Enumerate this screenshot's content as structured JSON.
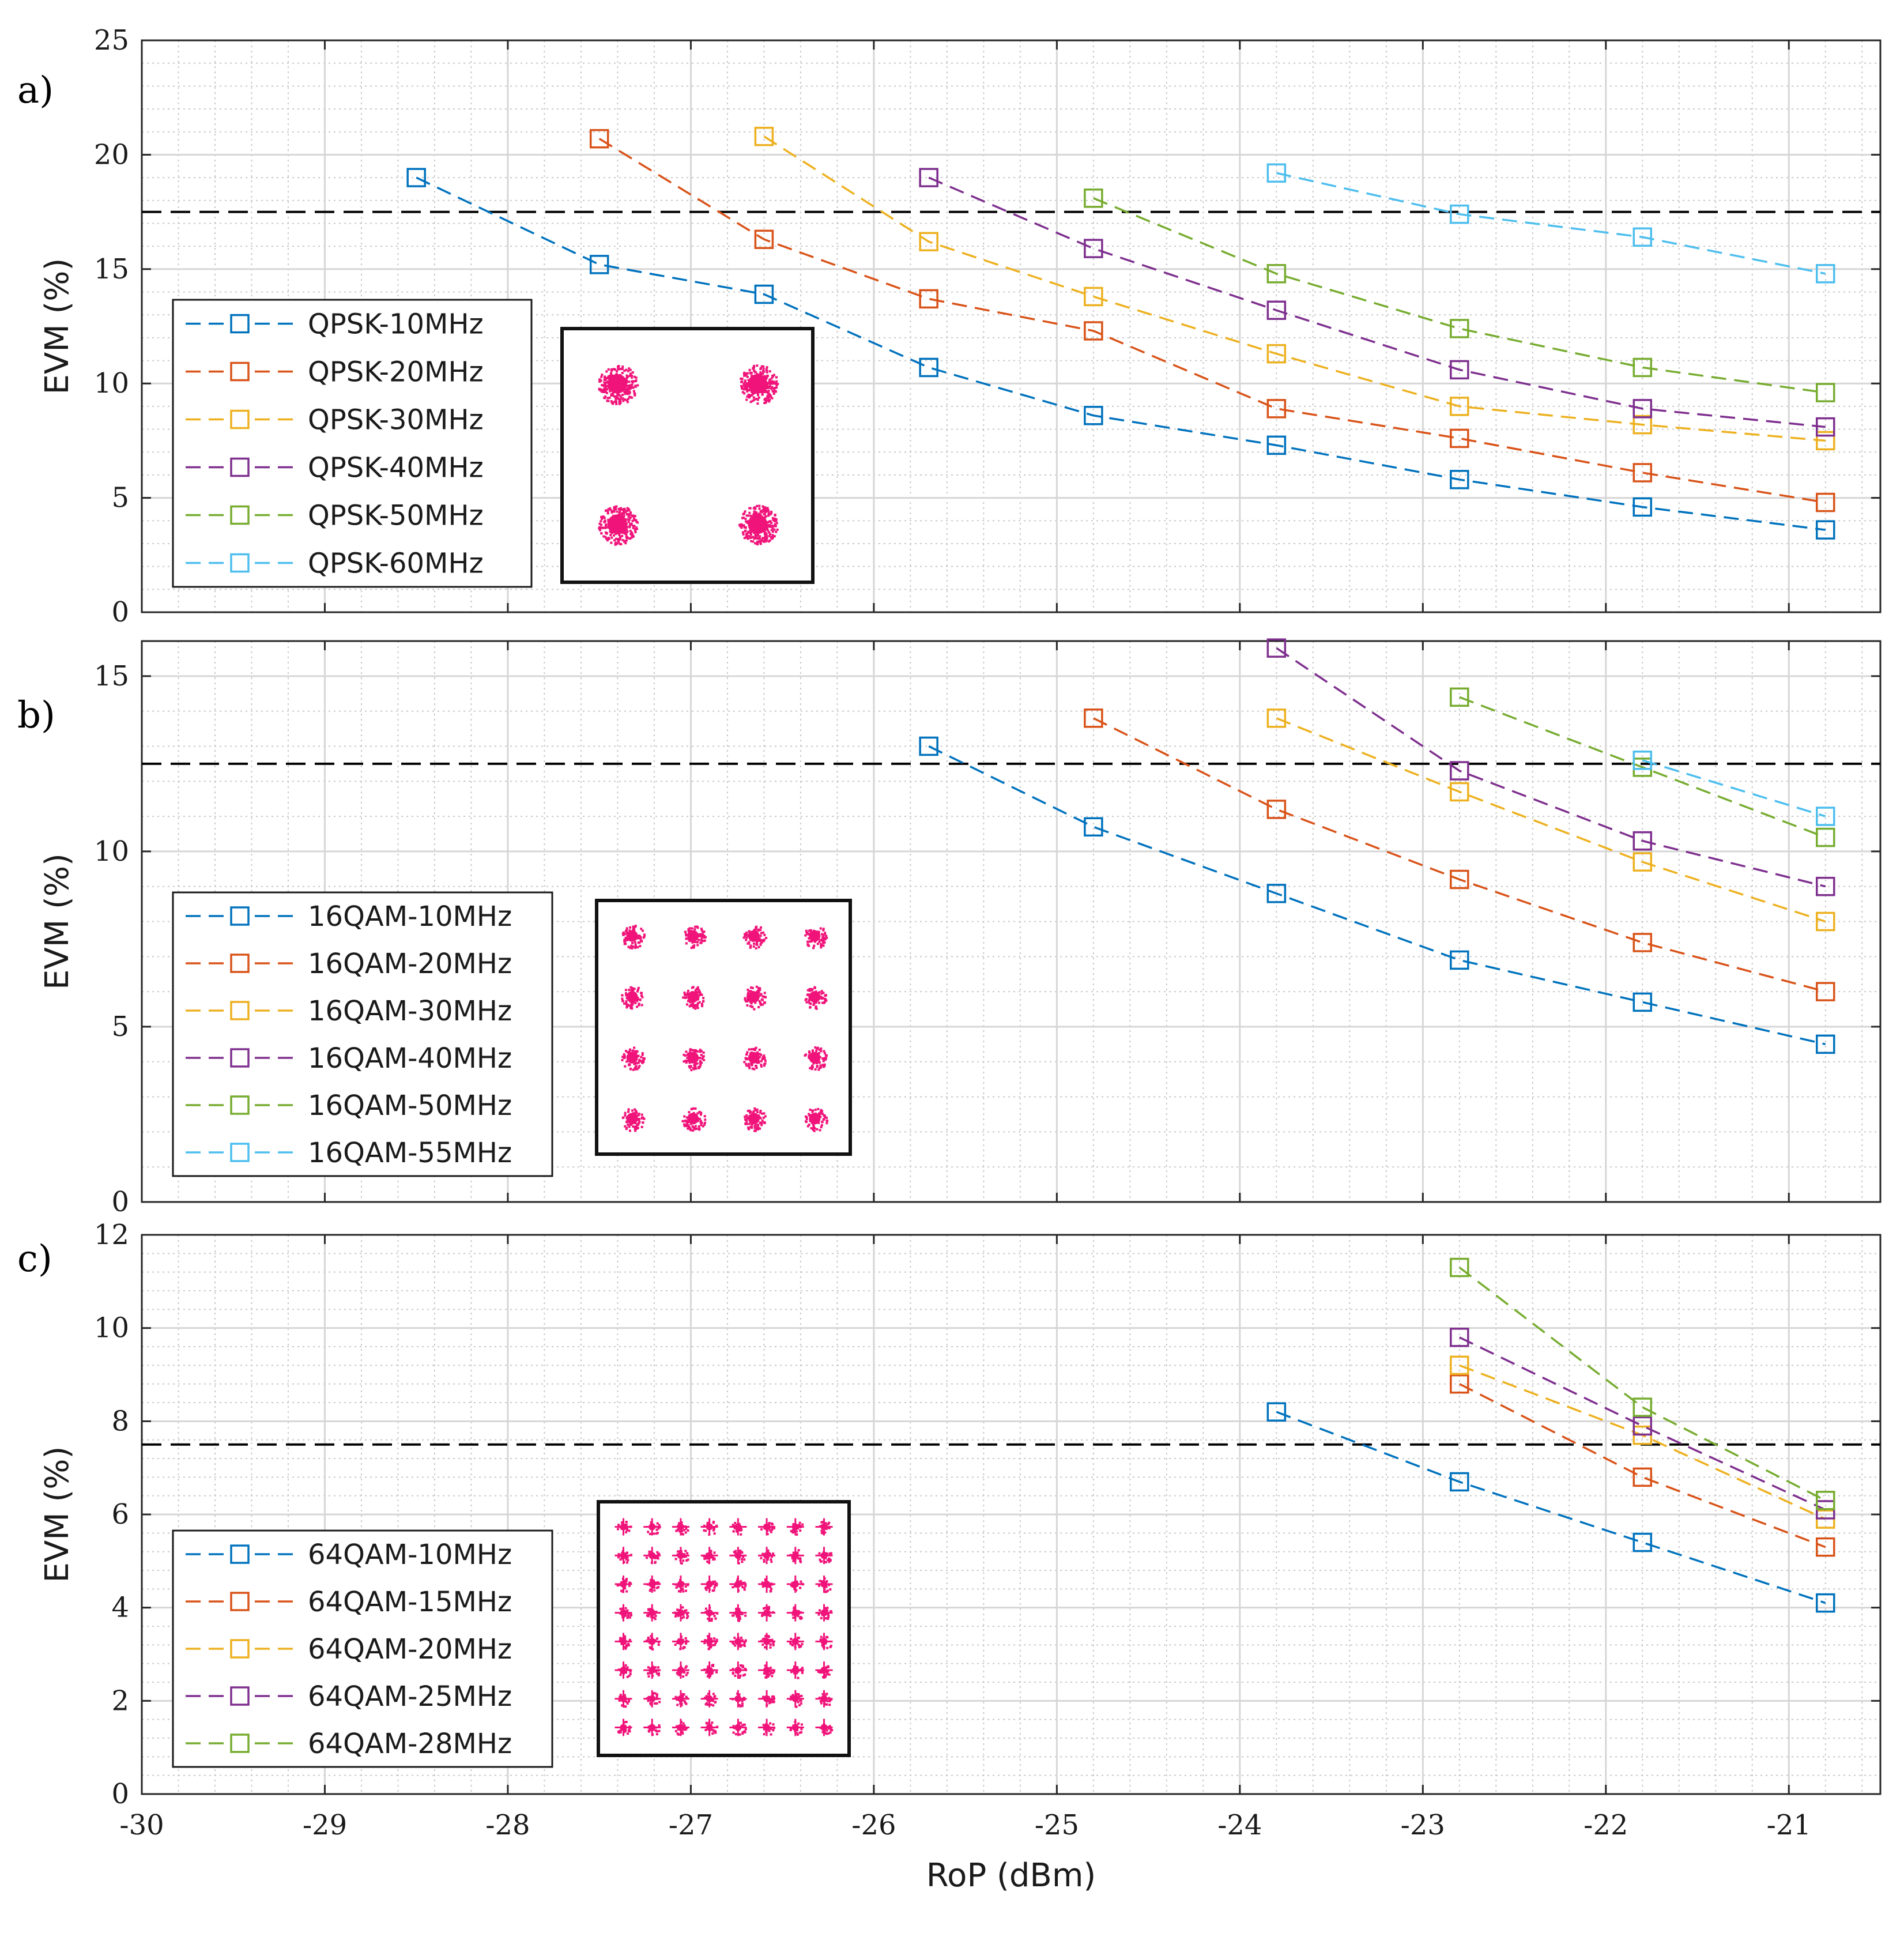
{
  "chart_data": [
    {
      "type": "line",
      "panel_label": "a)",
      "ylabel": "EVM (%)",
      "xlim": [
        -30,
        -20.5
      ],
      "ylim": [
        0,
        25
      ],
      "yticks": [
        0,
        5,
        10,
        15,
        20,
        25
      ],
      "grid": true,
      "legend_position": "middle-left",
      "threshold": 17.5,
      "constellation_inset": "QPSK",
      "series": [
        {
          "name": "QPSK-10MHz",
          "color": "#0072BD",
          "x": [
            -28.5,
            -27.5,
            -26.6,
            -25.7,
            -24.8,
            -23.8,
            -22.8,
            -21.8,
            -20.8
          ],
          "y": [
            19.0,
            15.2,
            13.9,
            10.7,
            8.6,
            7.3,
            5.8,
            4.6,
            3.6
          ]
        },
        {
          "name": "QPSK-20MHz",
          "color": "#D95319",
          "x": [
            -27.5,
            -26.6,
            -25.7,
            -24.8,
            -23.8,
            -22.8,
            -21.8,
            -20.8
          ],
          "y": [
            20.7,
            16.3,
            13.7,
            12.3,
            8.9,
            7.6,
            6.1,
            4.8
          ]
        },
        {
          "name": "QPSK-30MHz",
          "color": "#EDB120",
          "x": [
            -26.6,
            -25.7,
            -24.8,
            -23.8,
            -22.8,
            -21.8,
            -20.8
          ],
          "y": [
            20.8,
            16.2,
            13.8,
            11.3,
            9.0,
            8.2,
            7.5
          ]
        },
        {
          "name": "QPSK-40MHz",
          "color": "#7E2F8E",
          "x": [
            -25.7,
            -24.8,
            -23.8,
            -22.8,
            -21.8,
            -20.8
          ],
          "y": [
            19.0,
            15.9,
            13.2,
            10.6,
            8.9,
            8.1
          ]
        },
        {
          "name": "QPSK-50MHz",
          "color": "#77AC30",
          "x": [
            -24.8,
            -23.8,
            -22.8,
            -21.8,
            -20.8
          ],
          "y": [
            18.1,
            14.8,
            12.4,
            10.7,
            9.6
          ]
        },
        {
          "name": "QPSK-60MHz",
          "color": "#4DBEEE",
          "x": [
            -23.8,
            -22.8,
            -21.8,
            -20.8
          ],
          "y": [
            19.2,
            17.4,
            16.4,
            14.8
          ]
        }
      ]
    },
    {
      "type": "line",
      "panel_label": "b)",
      "ylabel": "EVM (%)",
      "xlim": [
        -30,
        -20.5
      ],
      "ylim": [
        0,
        16
      ],
      "yticks": [
        0,
        5,
        10,
        15
      ],
      "grid": true,
      "legend_position": "bottom-left",
      "threshold": 12.5,
      "constellation_inset": "16QAM",
      "series": [
        {
          "name": "16QAM-10MHz",
          "color": "#0072BD",
          "x": [
            -25.7,
            -24.8,
            -23.8,
            -22.8,
            -21.8,
            -20.8
          ],
          "y": [
            13.0,
            10.7,
            8.8,
            6.9,
            5.7,
            4.5
          ]
        },
        {
          "name": "16QAM-20MHz",
          "color": "#D95319",
          "x": [
            -24.8,
            -23.8,
            -22.8,
            -21.8,
            -20.8
          ],
          "y": [
            13.8,
            11.2,
            9.2,
            7.4,
            6.0
          ]
        },
        {
          "name": "16QAM-30MHz",
          "color": "#EDB120",
          "x": [
            -23.8,
            -22.8,
            -21.8,
            -20.8
          ],
          "y": [
            13.8,
            11.7,
            9.7,
            8.0
          ]
        },
        {
          "name": "16QAM-40MHz",
          "color": "#7E2F8E",
          "x": [
            -23.8,
            -22.8,
            -21.8,
            -20.8
          ],
          "y": [
            15.8,
            12.3,
            10.3,
            9.0
          ]
        },
        {
          "name": "16QAM-50MHz",
          "color": "#77AC30",
          "x": [
            -22.8,
            -21.8,
            -20.8
          ],
          "y": [
            14.4,
            12.4,
            10.4
          ]
        },
        {
          "name": "16QAM-55MHz",
          "color": "#4DBEEE",
          "x": [
            -21.8,
            -20.8
          ],
          "y": [
            12.6,
            11.0
          ]
        }
      ]
    },
    {
      "type": "line",
      "panel_label": "c)",
      "ylabel": "EVM (%)",
      "xlabel": "RoP (dBm)",
      "xlim": [
        -30,
        -20.5
      ],
      "ylim": [
        0,
        12
      ],
      "yticks": [
        0,
        2,
        4,
        6,
        8,
        10,
        12
      ],
      "xticks": [
        -30,
        -29,
        -28,
        -27,
        -26,
        -25,
        -24,
        -23,
        -22,
        -21
      ],
      "grid": true,
      "legend_position": "bottom-left",
      "threshold": 7.5,
      "constellation_inset": "64QAM",
      "series": [
        {
          "name": "64QAM-10MHz",
          "color": "#0072BD",
          "x": [
            -23.8,
            -22.8,
            -21.8,
            -20.8
          ],
          "y": [
            8.2,
            6.7,
            5.4,
            4.1
          ]
        },
        {
          "name": "64QAM-15MHz",
          "color": "#D95319",
          "x": [
            -22.8,
            -21.8,
            -20.8
          ],
          "y": [
            8.8,
            6.8,
            5.3
          ]
        },
        {
          "name": "64QAM-20MHz",
          "color": "#EDB120",
          "x": [
            -22.8,
            -21.8,
            -20.8
          ],
          "y": [
            9.2,
            7.7,
            5.9
          ]
        },
        {
          "name": "64QAM-25MHz",
          "color": "#7E2F8E",
          "x": [
            -22.8,
            -21.8,
            -20.8
          ],
          "y": [
            9.8,
            7.9,
            6.1
          ]
        },
        {
          "name": "64QAM-28MHz",
          "color": "#77AC30",
          "x": [
            -22.8,
            -21.8,
            -20.8
          ],
          "y": [
            11.3,
            8.3,
            6.3
          ]
        }
      ]
    }
  ],
  "colors": {
    "threshold_line": "#000000",
    "constellation": "#F0147A",
    "grid": "#d6d6d6",
    "frame": "#262626"
  }
}
